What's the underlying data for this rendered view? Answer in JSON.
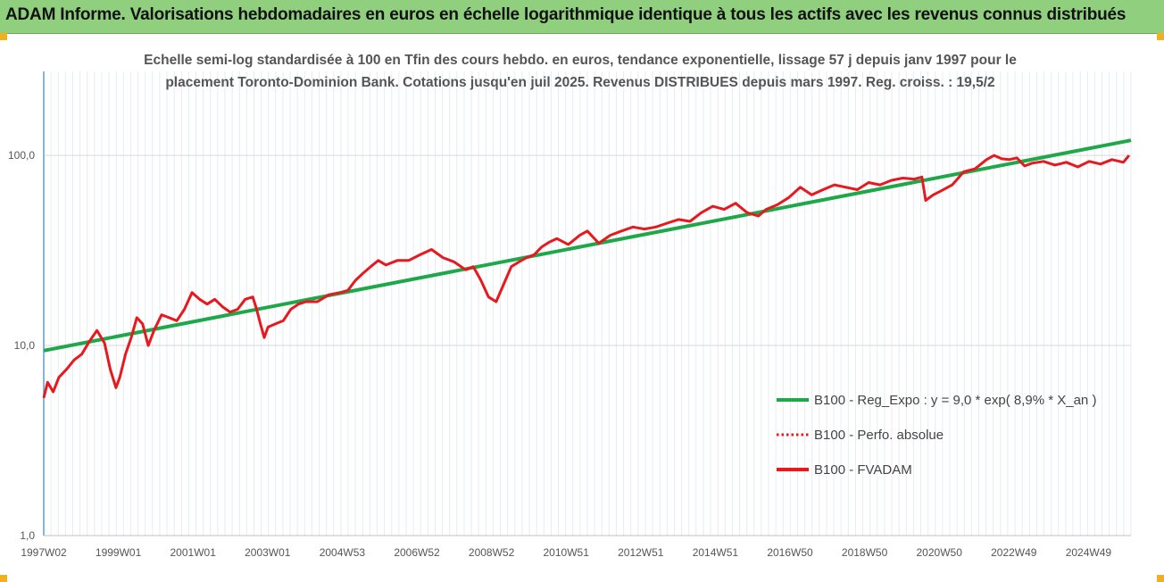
{
  "header": {
    "title": "ADAM Informe. Valorisations hebdomadaires en euros en échelle logarithmique identique à tous les actifs avec les revenus connus distribués"
  },
  "colors": {
    "header_bg": "#8fcf7e",
    "corner": "#f2b01e",
    "reg_line": "#1fa84a",
    "fvadam_line": "#e8191e",
    "perfo_line": "#e8191e",
    "grid": "#d9d9d9",
    "axis": "#5b9bd5"
  },
  "chart_data": {
    "type": "line",
    "title_lines": [
      "Echelle semi-log standardisée à 100 en Tfin des cours hebdo. en euros, tendance exponentielle, lissage 57 j depuis janv 1997 pour le",
      "placement Toronto-Dominion Bank. Cotations jusqu'en juil 2025. Revenus DISTRIBUES depuis mars 1997. Reg. croiss. : 19,5/2"
    ],
    "y_scale": "log",
    "ylim": [
      1,
      200
    ],
    "y_ticks": [
      {
        "value": 1,
        "label": "1,0"
      },
      {
        "value": 10,
        "label": "10,0"
      },
      {
        "value": 100,
        "label": "100,0"
      }
    ],
    "xlim": [
      1997.0,
      2025.6
    ],
    "x_ticks": [
      "1997W02",
      "1999W01",
      "2001W01",
      "2003W01",
      "2004W53",
      "2006W52",
      "2008W52",
      "2010W51",
      "2012W51",
      "2014W51",
      "2016W50",
      "2018W50",
      "2020W50",
      "2022W49",
      "2024W49"
    ],
    "legend_position": "right",
    "series": [
      {
        "name": "B100 - Reg_Expo : y = 9,0 * exp( 8,9% *  X_an )",
        "style": "solid-green",
        "x": [
          1997.0,
          2025.6
        ],
        "y": [
          9.4,
          120
        ]
      },
      {
        "name": "B100 - Perfo. absolue",
        "style": "dotted-red",
        "x": [],
        "y": []
      },
      {
        "name": "B100 - FVADAM",
        "style": "solid-red",
        "x": [
          1997.0,
          1997.1,
          1997.25,
          1997.4,
          1997.6,
          1997.8,
          1998.0,
          1998.2,
          1998.4,
          1998.6,
          1998.75,
          1998.9,
          1999.0,
          1999.15,
          1999.3,
          1999.45,
          1999.6,
          1999.75,
          1999.9,
          2000.1,
          2000.3,
          2000.5,
          2000.7,
          2000.9,
          2001.1,
          2001.3,
          2001.5,
          2001.7,
          2001.9,
          2002.1,
          2002.3,
          2002.5,
          2002.6,
          2002.7,
          2002.8,
          2002.9,
          2003.1,
          2003.3,
          2003.5,
          2003.7,
          2003.9,
          2004.2,
          2004.5,
          2004.8,
          2005.0,
          2005.2,
          2005.4,
          2005.6,
          2005.8,
          2006.0,
          2006.3,
          2006.6,
          2006.9,
          2007.2,
          2007.5,
          2007.8,
          2008.1,
          2008.3,
          2008.5,
          2008.7,
          2008.9,
          2009.1,
          2009.3,
          2009.5,
          2009.7,
          2009.9,
          2010.1,
          2010.3,
          2010.5,
          2010.8,
          2011.1,
          2011.3,
          2011.6,
          2011.9,
          2012.2,
          2012.5,
          2012.8,
          2013.1,
          2013.4,
          2013.7,
          2014.0,
          2014.3,
          2014.6,
          2014.9,
          2015.2,
          2015.5,
          2015.8,
          2016.0,
          2016.3,
          2016.6,
          2016.9,
          2017.2,
          2017.5,
          2017.8,
          2018.1,
          2018.4,
          2018.7,
          2019.0,
          2019.3,
          2019.6,
          2019.9,
          2020.1,
          2020.2,
          2020.4,
          2020.6,
          2020.9,
          2021.2,
          2021.5,
          2021.8,
          2022.0,
          2022.2,
          2022.4,
          2022.6,
          2022.8,
          2023.0,
          2023.3,
          2023.6,
          2023.9,
          2024.2,
          2024.5,
          2024.8,
          2025.1,
          2025.4,
          2025.55
        ],
        "y": [
          5.3,
          6.4,
          5.7,
          6.8,
          7.5,
          8.4,
          9.0,
          10.5,
          12.0,
          10.3,
          7.5,
          6.0,
          6.8,
          9.0,
          11.0,
          14.0,
          13.0,
          10.0,
          12.0,
          14.5,
          14.0,
          13.5,
          15.5,
          19.0,
          17.5,
          16.5,
          17.5,
          16.0,
          15.0,
          15.5,
          17.5,
          18.0,
          15.5,
          13.0,
          11.0,
          12.5,
          13.0,
          13.5,
          15.5,
          16.5,
          17.0,
          17.0,
          18.5,
          19.0,
          19.5,
          22.0,
          24.0,
          26.0,
          28.0,
          26.5,
          28.0,
          28.0,
          30.0,
          32.0,
          29.0,
          27.5,
          25.0,
          26.0,
          22.0,
          18.0,
          17.0,
          21.0,
          26.0,
          27.5,
          29.0,
          30.0,
          33.0,
          35.0,
          36.5,
          34.0,
          38.0,
          40.0,
          34.5,
          38.0,
          40.0,
          42.0,
          41.0,
          42.0,
          44.0,
          46.0,
          45.0,
          50.0,
          54.0,
          52.0,
          56.0,
          50.0,
          48.0,
          52.0,
          55.0,
          60.0,
          68.0,
          62.0,
          66.0,
          70.0,
          68.0,
          66.0,
          72.0,
          70.0,
          74.0,
          76.0,
          75.0,
          77.0,
          58.0,
          62.0,
          65.0,
          70.0,
          82.0,
          85.0,
          95.0,
          100.0,
          96.0,
          95.0,
          97.0,
          88.0,
          91.0,
          93.0,
          89.0,
          92.0,
          87.0,
          93.0,
          90.0,
          95.0,
          92.0,
          100.0
        ]
      }
    ]
  }
}
